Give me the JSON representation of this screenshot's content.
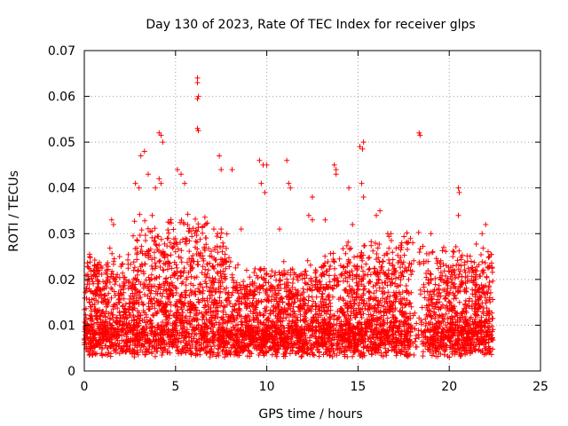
{
  "chart_data": {
    "type": "scatter",
    "title": "Day 130 of 2023, Rate Of TEC Index for receiver glps",
    "xlabel": "GPS time / hours",
    "ylabel": "ROTI / TECUs",
    "xlim": [
      0,
      25
    ],
    "ylim": [
      0,
      0.07
    ],
    "x_ticks": [
      0,
      5,
      10,
      15,
      20,
      25
    ],
    "x_tick_labels": [
      "0",
      "5",
      "10",
      "15",
      "20",
      "25"
    ],
    "y_ticks": [
      0,
      0.01,
      0.02,
      0.03,
      0.04,
      0.05,
      0.06,
      0.07
    ],
    "y_tick_labels": [
      "0",
      "0.01",
      "0.02",
      "0.03",
      "0.04",
      "0.05",
      "0.06",
      "0.07"
    ],
    "grid": true,
    "marker": "+",
    "series": [
      {
        "name": "ROTI",
        "color": "#ff0000",
        "data_range_x": [
          0,
          22.4
        ],
        "baseline": 0.01,
        "points": [
          [
            6.2,
            0.064
          ],
          [
            6.2,
            0.063
          ],
          [
            6.25,
            0.06
          ],
          [
            6.2,
            0.0595
          ],
          [
            6.2,
            0.053
          ],
          [
            6.25,
            0.0525
          ],
          [
            18.35,
            0.052
          ],
          [
            18.4,
            0.0515
          ],
          [
            4.1,
            0.052
          ],
          [
            4.2,
            0.0515
          ],
          [
            4.3,
            0.05
          ],
          [
            15.1,
            0.049
          ],
          [
            15.3,
            0.05
          ],
          [
            15.25,
            0.0485
          ],
          [
            3.3,
            0.048
          ],
          [
            3.1,
            0.047
          ],
          [
            7.4,
            0.047
          ],
          [
            7.5,
            0.044
          ],
          [
            9.6,
            0.046
          ],
          [
            9.8,
            0.045
          ],
          [
            10.0,
            0.045
          ],
          [
            11.1,
            0.046
          ],
          [
            13.7,
            0.045
          ],
          [
            13.8,
            0.044
          ],
          [
            13.8,
            0.043
          ],
          [
            5.1,
            0.044
          ],
          [
            5.3,
            0.043
          ],
          [
            4.1,
            0.042
          ],
          [
            4.2,
            0.041
          ],
          [
            20.5,
            0.04
          ],
          [
            20.55,
            0.039
          ],
          [
            20.5,
            0.034
          ],
          [
            11.2,
            0.041
          ],
          [
            11.3,
            0.04
          ],
          [
            9.7,
            0.041
          ],
          [
            9.9,
            0.039
          ],
          [
            15.2,
            0.041
          ],
          [
            15.3,
            0.038
          ],
          [
            12.5,
            0.038
          ],
          [
            8.1,
            0.044
          ],
          [
            5.5,
            0.041
          ],
          [
            2.8,
            0.041
          ],
          [
            3.0,
            0.04
          ],
          [
            3.5,
            0.043
          ],
          [
            3.9,
            0.04
          ],
          [
            14.5,
            0.04
          ],
          [
            16.2,
            0.035
          ],
          [
            16.0,
            0.034
          ],
          [
            19.0,
            0.03
          ],
          [
            21.8,
            0.03
          ],
          [
            1.5,
            0.033
          ],
          [
            1.6,
            0.032
          ],
          [
            7.1,
            0.031
          ],
          [
            7.3,
            0.03
          ],
          [
            7.5,
            0.031
          ],
          [
            8.6,
            0.031
          ],
          [
            10.7,
            0.031
          ],
          [
            12.3,
            0.034
          ],
          [
            12.5,
            0.033
          ],
          [
            13.2,
            0.033
          ],
          [
            14.7,
            0.032
          ],
          [
            16.8,
            0.03
          ],
          [
            17.4,
            0.028
          ],
          [
            18.0,
            0.028
          ],
          [
            19.7,
            0.027
          ],
          [
            20.2,
            0.025
          ],
          [
            21.0,
            0.024
          ],
          [
            22.0,
            0.032
          ],
          [
            22.2,
            0.025
          ],
          [
            0.3,
            0.025
          ],
          [
            0.5,
            0.022
          ]
        ]
      }
    ]
  }
}
